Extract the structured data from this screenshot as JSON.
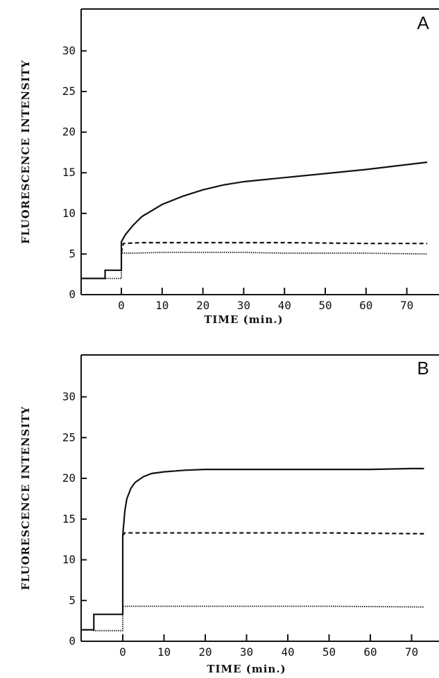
{
  "chart_data": [
    {
      "type": "line",
      "panel_label": "A",
      "xlabel": "TIME (min.)",
      "ylabel": "FLUORESCENCE INTENSITY",
      "xlim": [
        -10,
        78
      ],
      "ylim": [
        0,
        35
      ],
      "x_ticks": [
        0,
        10,
        20,
        30,
        40,
        50,
        60,
        70
      ],
      "y_ticks": [
        0,
        5,
        10,
        15,
        20,
        25,
        30
      ],
      "series": [
        {
          "style": "solid",
          "x": [
            -10,
            -4,
            -4,
            0,
            0,
            1,
            3,
            5,
            10,
            15,
            20,
            25,
            30,
            40,
            50,
            60,
            70,
            75
          ],
          "y": [
            2,
            2,
            3,
            3,
            6.5,
            7.4,
            8.6,
            9.6,
            11.1,
            12.1,
            12.9,
            13.5,
            13.9,
            14.4,
            14.9,
            15.4,
            16,
            16.3
          ]
        },
        {
          "style": "dashed",
          "x": [
            0,
            0.5,
            5,
            20,
            40,
            60,
            75
          ],
          "y": [
            5.2,
            6.3,
            6.4,
            6.4,
            6.4,
            6.3,
            6.3
          ]
        },
        {
          "style": "dotted",
          "x": [
            -10,
            -4,
            -4,
            0,
            0,
            3,
            10,
            20,
            30,
            40,
            60,
            75
          ],
          "y": [
            2,
            2,
            2,
            2,
            5.1,
            5.1,
            5.2,
            5.2,
            5.2,
            5.1,
            5.1,
            5
          ]
        }
      ]
    },
    {
      "type": "line",
      "panel_label": "B",
      "xlabel": "TIME (min.)",
      "ylabel": "FLUORESCENCE INTENSITY",
      "xlim": [
        -10,
        78
      ],
      "ylim": [
        0,
        35
      ],
      "x_ticks": [
        0,
        10,
        20,
        30,
        40,
        50,
        60,
        70
      ],
      "y_ticks": [
        0,
        5,
        10,
        15,
        20,
        25,
        30
      ],
      "series": [
        {
          "style": "solid",
          "x": [
            -10,
            -7,
            -7,
            0,
            0,
            0.5,
            1,
            2,
            3,
            5,
            7,
            10,
            15,
            20,
            30,
            40,
            50,
            60,
            70,
            73
          ],
          "y": [
            1.4,
            1.4,
            3.3,
            3.3,
            13,
            16,
            17.5,
            18.8,
            19.5,
            20.2,
            20.6,
            20.8,
            21,
            21.1,
            21.1,
            21.1,
            21.1,
            21.1,
            21.2,
            21.2
          ]
        },
        {
          "style": "dashed",
          "x": [
            0,
            0.5,
            10,
            30,
            50,
            73
          ],
          "y": [
            13,
            13.3,
            13.3,
            13.3,
            13.3,
            13.2
          ]
        },
        {
          "style": "dotted",
          "x": [
            -10,
            -7,
            -7,
            0,
            0,
            10,
            30,
            50,
            73
          ],
          "y": [
            1.4,
            1.4,
            1.3,
            1.3,
            4.3,
            4.3,
            4.3,
            4.3,
            4.2
          ]
        }
      ]
    }
  ]
}
